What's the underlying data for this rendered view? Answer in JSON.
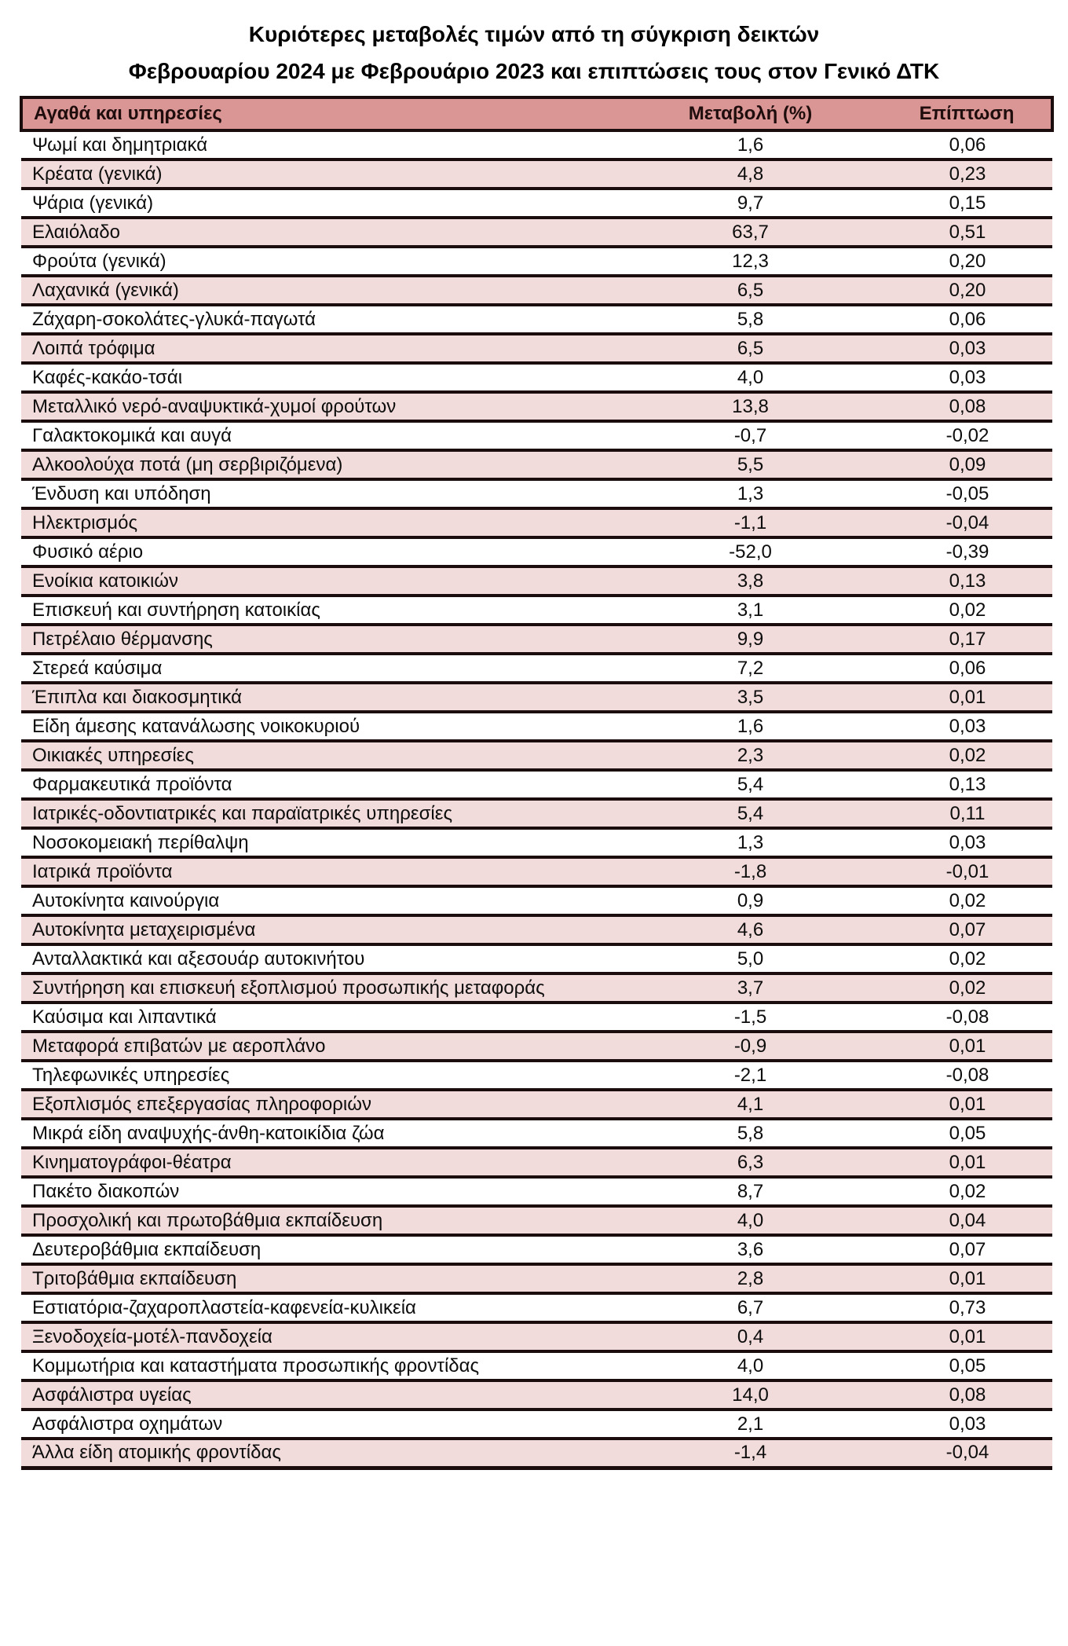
{
  "title": {
    "line1": "Κυριότερες μεταβολές τιμών από τη σύγκριση δεικτών",
    "line2": "Φεβρουαρίου 2024 με Φεβρουάριο 2023 και επιπτώσεις τους στον Γενικό ΔΤΚ"
  },
  "colors": {
    "header_bg": "#D99694",
    "row_alt_bg": "#F2DCDB",
    "row_bg": "#FFFFFF",
    "border_color": "#1B0D0D",
    "header_text": "#1F0C0C",
    "body_text": "#0D0D0D"
  },
  "table": {
    "headers": [
      "Αγαθά και υπηρεσίες",
      "Μεταβολή (%)",
      "Επίπτωση"
    ],
    "rows": [
      {
        "label": "Ψωμί και δημητριακά",
        "change": "1,6",
        "impact": "0,06"
      },
      {
        "label": "Κρέατα (γενικά)",
        "change": "4,8",
        "impact": "0,23"
      },
      {
        "label": "Ψάρια (γενικά)",
        "change": "9,7",
        "impact": "0,15"
      },
      {
        "label": "Ελαιόλαδο",
        "change": "63,7",
        "impact": "0,51"
      },
      {
        "label": "Φρούτα (γενικά)",
        "change": "12,3",
        "impact": "0,20"
      },
      {
        "label": "Λαχανικά (γενικά)",
        "change": "6,5",
        "impact": "0,20"
      },
      {
        "label": "Ζάχαρη-σοκολάτες-γλυκά-παγωτά",
        "change": "5,8",
        "impact": "0,06"
      },
      {
        "label": "Λοιπά τρόφιμα",
        "change": "6,5",
        "impact": "0,03"
      },
      {
        "label": "Καφές-κακάο-τσάι",
        "change": "4,0",
        "impact": "0,03"
      },
      {
        "label": "Μεταλλικό νερό-αναψυκτικά-χυμοί φρούτων",
        "change": "13,8",
        "impact": "0,08"
      },
      {
        "label": "Γαλακτοκομικά και αυγά",
        "change": "-0,7",
        "impact": "-0,02"
      },
      {
        "label": "Αλκοολούχα ποτά (μη σερβιριζόμενα)",
        "change": "5,5",
        "impact": "0,09"
      },
      {
        "label": "Ένδυση και υπόδηση",
        "change": "1,3",
        "impact": "-0,05"
      },
      {
        "label": "Ηλεκτρισμός",
        "change": "-1,1",
        "impact": "-0,04"
      },
      {
        "label": "Φυσικό αέριο",
        "change": "-52,0",
        "impact": "-0,39"
      },
      {
        "label": "Ενοίκια κατοικιών",
        "change": "3,8",
        "impact": "0,13"
      },
      {
        "label": "Επισκευή και συντήρηση κατοικίας",
        "change": "3,1",
        "impact": "0,02"
      },
      {
        "label": "Πετρέλαιο θέρμανσης",
        "change": "9,9",
        "impact": "0,17"
      },
      {
        "label": "Στερεά καύσιμα",
        "change": "7,2",
        "impact": "0,06"
      },
      {
        "label": "Έπιπλα και διακοσμητικά",
        "change": "3,5",
        "impact": "0,01"
      },
      {
        "label": "Είδη άμεσης κατανάλωσης νοικοκυριού",
        "change": "1,6",
        "impact": "0,03"
      },
      {
        "label": "Οικιακές υπηρεσίες",
        "change": "2,3",
        "impact": "0,02"
      },
      {
        "label": "Φαρμακευτικά προϊόντα",
        "change": "5,4",
        "impact": "0,13"
      },
      {
        "label": "Ιατρικές-οδοντιατρικές και παραϊατρικές υπηρεσίες",
        "change": "5,4",
        "impact": "0,11"
      },
      {
        "label": "Νοσοκομειακή περίθαλψη",
        "change": "1,3",
        "impact": "0,03"
      },
      {
        "label": "Ιατρικά προϊόντα",
        "change": "-1,8",
        "impact": "-0,01"
      },
      {
        "label": "Αυτοκίνητα καινούργια",
        "change": "0,9",
        "impact": "0,02"
      },
      {
        "label": "Αυτοκίνητα μεταχειρισμένα",
        "change": "4,6",
        "impact": "0,07"
      },
      {
        "label": "Ανταλλακτικά και αξεσουάρ αυτοκινήτου",
        "change": "5,0",
        "impact": "0,02"
      },
      {
        "label": "Συντήρηση και επισκευή εξοπλισμού προσωπικής μεταφοράς",
        "change": "3,7",
        "impact": "0,02"
      },
      {
        "label": "Καύσιμα και λιπαντικά",
        "change": "-1,5",
        "impact": "-0,08"
      },
      {
        "label": "Μεταφορά επιβατών με αεροπλάνο",
        "change": "-0,9",
        "impact": "0,01"
      },
      {
        "label": "Τηλεφωνικές υπηρεσίες",
        "change": "-2,1",
        "impact": "-0,08"
      },
      {
        "label": "Εξοπλισμός επεξεργασίας πληροφοριών",
        "change": "4,1",
        "impact": "0,01"
      },
      {
        "label": "Μικρά είδη αναψυχής-άνθη-κατοικίδια ζώα",
        "change": "5,8",
        "impact": "0,05"
      },
      {
        "label": "Κινηματογράφοι-θέατρα",
        "change": "6,3",
        "impact": "0,01"
      },
      {
        "label": "Πακέτο διακοπών",
        "change": "8,7",
        "impact": "0,02"
      },
      {
        "label": "Προσχολική και πρωτοβάθμια εκπαίδευση",
        "change": "4,0",
        "impact": "0,04"
      },
      {
        "label": "Δευτεροβάθμια εκπαίδευση",
        "change": "3,6",
        "impact": "0,07"
      },
      {
        "label": "Τριτοβάθμια εκπαίδευση",
        "change": "2,8",
        "impact": "0,01"
      },
      {
        "label": "Εστιατόρια-ζαχαροπλαστεία-καφενεία-κυλικεία",
        "change": "6,7",
        "impact": "0,73"
      },
      {
        "label": "Ξενοδοχεία-μοτέλ-πανδοχεία",
        "change": "0,4",
        "impact": "0,01"
      },
      {
        "label": "Κομμωτήρια και καταστήματα προσωπικής φροντίδας",
        "change": "4,0",
        "impact": "0,05"
      },
      {
        "label": "Ασφάλιστρα υγείας",
        "change": "14,0",
        "impact": "0,08"
      },
      {
        "label": "Ασφάλιστρα οχημάτων",
        "change": "2,1",
        "impact": "0,03"
      },
      {
        "label": "Άλλα είδη ατομικής φροντίδας",
        "change": "-1,4",
        "impact": "-0,04"
      }
    ]
  },
  "chart_data": {
    "type": "table",
    "title": "Κυριότερες μεταβολές τιμών από τη σύγκριση δεικτών Φεβρουαρίου 2024 με Φεβρουάριο 2023 και επιπτώσεις τους στον Γενικό ΔΤΚ",
    "columns": [
      "Αγαθά και υπηρεσίες",
      "Μεταβολή (%)",
      "Επίπτωση"
    ],
    "rows": [
      [
        "Ψωμί και δημητριακά",
        1.6,
        0.06
      ],
      [
        "Κρέατα (γενικά)",
        4.8,
        0.23
      ],
      [
        "Ψάρια (γενικά)",
        9.7,
        0.15
      ],
      [
        "Ελαιόλαδο",
        63.7,
        0.51
      ],
      [
        "Φρούτα (γενικά)",
        12.3,
        0.2
      ],
      [
        "Λαχανικά (γενικά)",
        6.5,
        0.2
      ],
      [
        "Ζάχαρη-σοκολάτες-γλυκά-παγωτά",
        5.8,
        0.06
      ],
      [
        "Λοιπά τρόφιμα",
        6.5,
        0.03
      ],
      [
        "Καφές-κακάο-τσάι",
        4.0,
        0.03
      ],
      [
        "Μεταλλικό νερό-αναψυκτικά-χυμοί φρούτων",
        13.8,
        0.08
      ],
      [
        "Γαλακτοκομικά και αυγά",
        -0.7,
        -0.02
      ],
      [
        "Αλκοολούχα ποτά (μη σερβιριζόμενα)",
        5.5,
        0.09
      ],
      [
        "Ένδυση και υπόδηση",
        1.3,
        -0.05
      ],
      [
        "Ηλεκτρισμός",
        -1.1,
        -0.04
      ],
      [
        "Φυσικό αέριο",
        -52.0,
        -0.39
      ],
      [
        "Ενοίκια κατοικιών",
        3.8,
        0.13
      ],
      [
        "Επισκευή και συντήρηση κατοικίας",
        3.1,
        0.02
      ],
      [
        "Πετρέλαιο θέρμανσης",
        9.9,
        0.17
      ],
      [
        "Στερεά καύσιμα",
        7.2,
        0.06
      ],
      [
        "Έπιπλα και διακοσμητικά",
        3.5,
        0.01
      ],
      [
        "Είδη άμεσης κατανάλωσης νοικοκυριού",
        1.6,
        0.03
      ],
      [
        "Οικιακές υπηρεσίες",
        2.3,
        0.02
      ],
      [
        "Φαρμακευτικά προϊόντα",
        5.4,
        0.13
      ],
      [
        "Ιατρικές-οδοντιατρικές και παραϊατρικές υπηρεσίες",
        5.4,
        0.11
      ],
      [
        "Νοσοκομειακή περίθαλψη",
        1.3,
        0.03
      ],
      [
        "Ιατρικά προϊόντα",
        -1.8,
        -0.01
      ],
      [
        "Αυτοκίνητα καινούργια",
        0.9,
        0.02
      ],
      [
        "Αυτοκίνητα μεταχειρισμένα",
        4.6,
        0.07
      ],
      [
        "Ανταλλακτικά και αξεσουάρ αυτοκινήτου",
        5.0,
        0.02
      ],
      [
        "Συντήρηση και επισκευή εξοπλισμού προσωπικής μεταφοράς",
        3.7,
        0.02
      ],
      [
        "Καύσιμα και λιπαντικά",
        -1.5,
        -0.08
      ],
      [
        "Μεταφορά επιβατών με αεροπλάνο",
        -0.9,
        0.01
      ],
      [
        "Τηλεφωνικές υπηρεσίες",
        -2.1,
        -0.08
      ],
      [
        "Εξοπλισμός επεξεργασίας πληροφοριών",
        4.1,
        0.01
      ],
      [
        "Μικρά είδη αναψυχής-άνθη-κατοικίδια ζώα",
        5.8,
        0.05
      ],
      [
        "Κινηματογράφοι-θέατρα",
        6.3,
        0.01
      ],
      [
        "Πακέτο διακοπών",
        8.7,
        0.02
      ],
      [
        "Προσχολική και πρωτοβάθμια εκπαίδευση",
        4.0,
        0.04
      ],
      [
        "Δευτεροβάθμια εκπαίδευση",
        3.6,
        0.07
      ],
      [
        "Τριτοβάθμια εκπαίδευση",
        2.8,
        0.01
      ],
      [
        "Εστιατόρια-ζαχαροπλαστεία-καφενεία-κυλικεία",
        6.7,
        0.73
      ],
      [
        "Ξενοδοχεία-μοτέλ-πανδοχεία",
        0.4,
        0.01
      ],
      [
        "Κομμωτήρια και καταστήματα προσωπικής φροντίδας",
        4.0,
        0.05
      ],
      [
        "Ασφάλιστρα υγείας",
        14.0,
        0.08
      ],
      [
        "Ασφάλιστρα οχημάτων",
        2.1,
        0.03
      ],
      [
        "Άλλα είδη ατομικής φροντίδας",
        -1.4,
        -0.04
      ]
    ]
  }
}
